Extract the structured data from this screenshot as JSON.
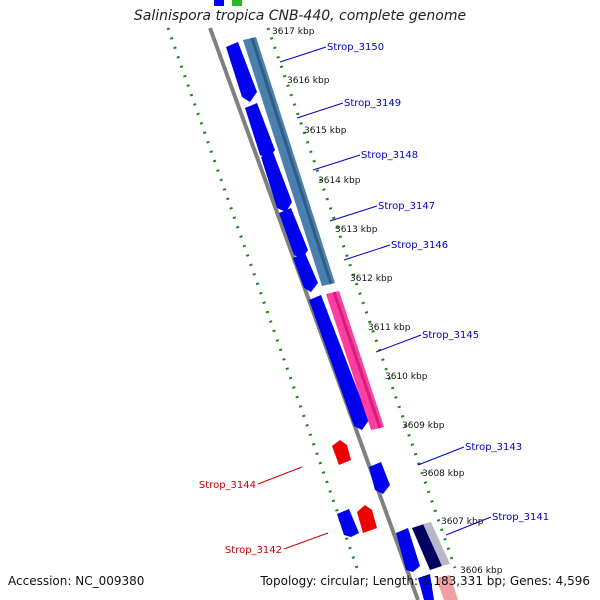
{
  "title": "Salinispora tropica CNB-440, complete genome",
  "footer": {
    "accession": "Accession: NC_009380",
    "summary": "Topology: circular; Length: 5,183,331 bp; Genes: 4,596"
  },
  "colors": {
    "cds": "#0000ee",
    "operon_steel": "#4a7fae",
    "operon_pink": "#ff3ea0",
    "rna_red": "#ee0000",
    "backbone": "#808080",
    "gc_dots": "#1a8a1a",
    "forward_label": "#0000cc",
    "reverse_label": "#cc0000"
  },
  "ticks": [
    {
      "label": "3617 kbp"
    },
    {
      "label": "3616 kbp"
    },
    {
      "label": "3615 kbp"
    },
    {
      "label": "3614 kbp"
    },
    {
      "label": "3613 kbp"
    },
    {
      "label": "3612 kbp"
    },
    {
      "label": "3611 kbp"
    },
    {
      "label": "3610 kbp"
    },
    {
      "label": "3609 kbp"
    },
    {
      "label": "3608 kbp"
    },
    {
      "label": "3607 kbp"
    },
    {
      "label": "3606 kbp"
    }
  ],
  "gene_labels": [
    {
      "label": "Strop_3150",
      "strand": "forward"
    },
    {
      "label": "Strop_3149",
      "strand": "forward"
    },
    {
      "label": "Strop_3148",
      "strand": "forward"
    },
    {
      "label": "Strop_3147",
      "strand": "forward"
    },
    {
      "label": "Strop_3146",
      "strand": "forward"
    },
    {
      "label": "Strop_3145",
      "strand": "forward"
    },
    {
      "label": "Strop_3143",
      "strand": "forward"
    },
    {
      "label": "Strop_3144",
      "strand": "reverse"
    },
    {
      "label": "Strop_3141",
      "strand": "forward"
    },
    {
      "label": "Strop_3142",
      "strand": "reverse"
    }
  ]
}
